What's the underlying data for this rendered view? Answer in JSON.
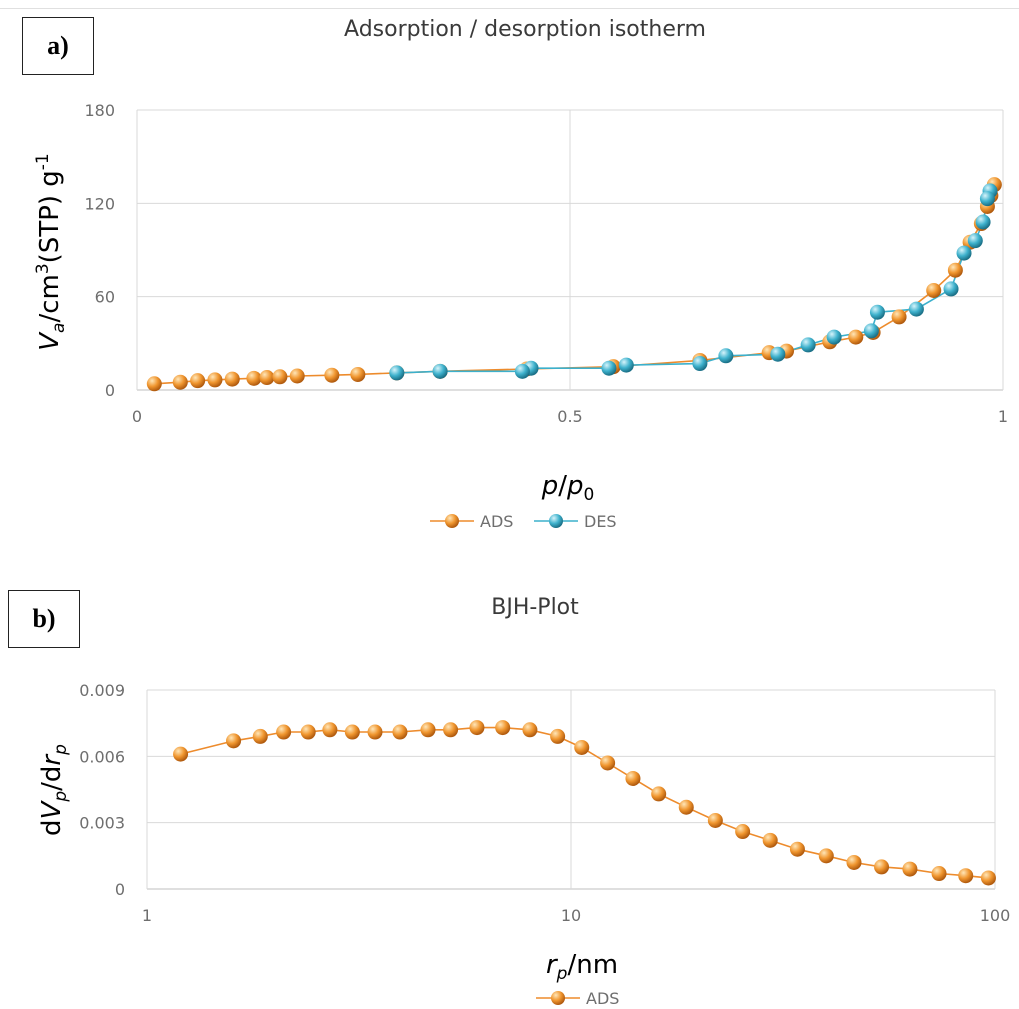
{
  "panels": {
    "a": "a)",
    "b": "b)"
  },
  "colors": {
    "ads": "#ed8b2c",
    "des": "#3cb0cc",
    "grid": "#d9d9d9",
    "axis": "#bfbfbf"
  },
  "chart_data": [
    {
      "type": "scatter",
      "title": "Adsorption / desorption isotherm",
      "xlabel": "p/p0",
      "ylabel": "Va/cm3(STP) g-1",
      "xlim": [
        0,
        1
      ],
      "ylim": [
        0,
        180
      ],
      "xticks": [
        "0",
        "0.5",
        "1"
      ],
      "yticks": [
        "0",
        "60",
        "120",
        "180"
      ],
      "legend_position": "bottom",
      "grid": true,
      "series": [
        {
          "name": "ADS",
          "x": [
            0.02,
            0.05,
            0.07,
            0.09,
            0.11,
            0.135,
            0.15,
            0.165,
            0.185,
            0.225,
            0.255,
            0.3,
            0.35,
            0.45,
            0.55,
            0.65,
            0.73,
            0.75,
            0.8,
            0.83,
            0.85,
            0.88,
            0.92,
            0.945,
            0.962,
            0.975,
            0.982,
            0.986,
            0.99
          ],
          "y": [
            4,
            5,
            6,
            6.5,
            7,
            7.5,
            8,
            8.5,
            9,
            9.5,
            10,
            11,
            12,
            13.5,
            15,
            19,
            24,
            25,
            31,
            34,
            37,
            47,
            64,
            77,
            95,
            107,
            118,
            125,
            132
          ]
        },
        {
          "name": "DES",
          "x": [
            0.985,
            0.982,
            0.977,
            0.968,
            0.955,
            0.94,
            0.9,
            0.855,
            0.848,
            0.805,
            0.775,
            0.74,
            0.68,
            0.65,
            0.565,
            0.545,
            0.455,
            0.445,
            0.35,
            0.3
          ],
          "y": [
            128,
            123,
            108,
            96,
            88,
            65,
            52,
            50,
            38,
            34,
            29,
            23,
            22,
            17,
            16,
            14,
            14,
            12,
            12,
            11
          ]
        }
      ]
    },
    {
      "type": "line",
      "title": "BJH-Plot",
      "xlabel": "rp/nm",
      "ylabel": "dVp/drp",
      "xscale": "log",
      "xlim": [
        1,
        100
      ],
      "ylim": [
        0,
        0.009
      ],
      "xticks": [
        "1",
        "10",
        "100"
      ],
      "yticks": [
        "0",
        "0.003",
        "0.006",
        "0.009"
      ],
      "legend_position": "bottom",
      "grid": true,
      "series": [
        {
          "name": "ADS",
          "x": [
            1.2,
            1.6,
            1.85,
            2.1,
            2.4,
            2.7,
            3.05,
            3.45,
            3.95,
            4.6,
            5.2,
            6.0,
            6.9,
            8.0,
            9.3,
            10.6,
            12.2,
            14.0,
            16.1,
            18.7,
            21.9,
            25.4,
            29.5,
            34.2,
            40.0,
            46.5,
            54.0,
            63.0,
            73.8,
            85.3,
            96.5
          ],
          "y": [
            0.0061,
            0.0067,
            0.0069,
            0.0071,
            0.0071,
            0.0072,
            0.0071,
            0.0071,
            0.0071,
            0.0072,
            0.0072,
            0.0073,
            0.0073,
            0.0072,
            0.0069,
            0.0064,
            0.0057,
            0.005,
            0.0043,
            0.0037,
            0.0031,
            0.0026,
            0.0022,
            0.0018,
            0.0015,
            0.0012,
            0.001,
            0.0009,
            0.0007,
            0.0006,
            0.0005
          ]
        }
      ]
    }
  ]
}
